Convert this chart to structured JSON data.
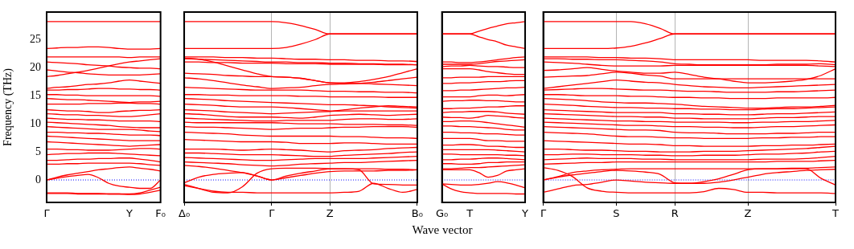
{
  "chart_data": [
    {
      "type": "line",
      "ylabel": "Frequency (THz)",
      "color": "#ff0000",
      "categories": [
        "Γ",
        null,
        null,
        null,
        null,
        null,
        null,
        null,
        "Y",
        null,
        null,
        "F₀"
      ],
      "ylim": [
        -4,
        29.9
      ],
      "yticks": [
        0,
        5,
        10,
        15,
        20,
        25
      ],
      "ref_lines": [
        {
          "axis": "y",
          "value": 0,
          "color": "#0000ff",
          "line_style": "dotted"
        }
      ],
      "series": [
        {
          "values": [
            28.2,
            28.2,
            28.2,
            28.2,
            28.2,
            28.2,
            28.2,
            28.2,
            28.2,
            28.2,
            28.2,
            28.2
          ]
        },
        {
          "values": [
            23.4,
            23.5,
            23.6,
            23.6,
            23.7,
            23.7,
            23.6,
            23.4,
            23.3,
            23.3,
            23.3,
            23.4
          ]
        },
        {
          "values": [
            21.9,
            21.9,
            21.9,
            21.9,
            21.9,
            21.9,
            21.9,
            21.9,
            21.8,
            21.9,
            21.9,
            21.9
          ]
        },
        {
          "values": [
            21.0,
            20.9,
            20.8,
            20.7,
            20.5,
            20.4,
            20.3,
            20.1,
            20.0,
            19.9,
            19.9,
            19.8
          ]
        },
        {
          "values": [
            18.4,
            18.6,
            18.9,
            19.2,
            19.5,
            19.9,
            20.3,
            20.7,
            21.0,
            21.2,
            21.4,
            21.6
          ]
        },
        {
          "values": [
            19.6,
            19.4,
            19.2,
            19.1,
            18.9,
            18.8,
            18.7,
            18.7,
            18.7,
            18.7,
            18.8,
            18.9
          ]
        },
        {
          "values": [
            16.3,
            16.5,
            16.6,
            16.8,
            17.0,
            17.1,
            17.3,
            17.6,
            17.8,
            17.6,
            17.4,
            17.2
          ]
        },
        {
          "values": [
            16.0,
            16.0,
            16.1,
            16.1,
            16.2,
            16.3,
            16.3,
            16.2,
            16.2,
            16.1,
            16.1,
            16.0
          ]
        },
        {
          "values": [
            15.2,
            15.2,
            15.1,
            15.1,
            15.0,
            15.0,
            15.0,
            15.0,
            15.0,
            15.0,
            15.0,
            14.9
          ]
        },
        {
          "values": [
            14.5,
            14.4,
            14.3,
            14.3,
            14.2,
            14.1,
            14.0,
            13.9,
            13.8,
            13.9,
            13.9,
            14.0
          ]
        },
        {
          "values": [
            13.5,
            13.5,
            13.5,
            13.5,
            13.6,
            13.6,
            13.6,
            13.7,
            13.7,
            13.6,
            13.6,
            13.5
          ]
        },
        {
          "values": [
            12.5,
            12.4,
            12.3,
            12.3,
            12.2,
            12.0,
            12.0,
            12.2,
            12.3,
            12.4,
            12.4,
            12.5
          ]
        },
        {
          "values": [
            11.8,
            11.7,
            11.6,
            11.6,
            11.5,
            11.5,
            11.4,
            11.3,
            11.3,
            11.4,
            11.6,
            11.8
          ]
        },
        {
          "values": [
            11.0,
            10.9,
            10.8,
            10.8,
            10.7,
            10.7,
            10.6,
            10.5,
            10.5,
            10.5,
            10.5,
            10.4
          ]
        },
        {
          "values": [
            10.3,
            10.2,
            10.1,
            10.0,
            9.9,
            9.8,
            9.7,
            9.5,
            9.4,
            9.3,
            9.3,
            9.3
          ]
        },
        {
          "values": [
            9.5,
            9.4,
            9.3,
            9.2,
            9.1,
            9.0,
            9.0,
            9.0,
            9.0,
            8.9,
            8.7,
            8.6
          ]
        },
        {
          "values": [
            8.5,
            8.5,
            8.4,
            8.4,
            8.3,
            8.3,
            8.2,
            8.1,
            8.0,
            8.0,
            8.0,
            7.9
          ]
        },
        {
          "values": [
            7.8,
            7.7,
            7.6,
            7.5,
            7.4,
            7.3,
            7.2,
            7.1,
            7.0,
            7.0,
            7.0,
            7.0
          ]
        },
        {
          "values": [
            6.8,
            6.7,
            6.6,
            6.5,
            6.4,
            6.3,
            6.2,
            6.1,
            6.0,
            6.1,
            6.2,
            6.3
          ]
        },
        {
          "values": [
            5.5,
            5.5,
            5.4,
            5.4,
            5.3,
            5.3,
            5.3,
            5.4,
            5.5,
            5.6,
            5.6,
            5.5
          ]
        },
        {
          "values": [
            4.5,
            4.6,
            4.7,
            4.7,
            4.8,
            4.8,
            4.8,
            4.7,
            4.6,
            4.5,
            4.4,
            4.3
          ]
        },
        {
          "values": [
            3.5,
            3.5,
            3.6,
            3.7,
            3.7,
            3.8,
            3.8,
            3.9,
            3.9,
            3.7,
            3.5,
            3.2
          ]
        },
        {
          "values": [
            2.8,
            2.8,
            2.9,
            2.9,
            3.0,
            3.0,
            3.0,
            3.0,
            3.0,
            2.9,
            2.7,
            2.6
          ]
        },
        {
          "values": [
            0,
            0.5,
            0.9,
            1.2,
            1.5,
            1.8,
            2.0,
            2.2,
            2.3,
            2.1,
            1.9,
            1.6
          ]
        },
        {
          "values": [
            0,
            0.3,
            0.6,
            0.8,
            1.0,
            0.4,
            -0.6,
            -1.1,
            -1.3,
            -1.5,
            -1.5,
            0
          ]
        },
        {
          "values": [
            -2.3,
            -2.3,
            -2.3,
            -2.4,
            -2.4,
            -2.4,
            -2.5,
            -2.5,
            -2.6,
            -2.5,
            -2.2,
            -1.8
          ]
        },
        {
          "values": [
            -2.4,
            -2.4,
            -2.4,
            -2.5,
            -2.5,
            -2.5,
            -2.5,
            -2.5,
            -2.5,
            -2.3,
            -1.8,
            -1.3
          ]
        }
      ]
    },
    {
      "type": "line",
      "color": "#ff0000",
      "grid": "x",
      "tick_labels": "x",
      "categories": [
        "Δ₀",
        null,
        null,
        null,
        null,
        null,
        "Γ",
        null,
        null,
        null,
        "Z",
        null,
        null,
        null,
        null,
        null,
        "B₀"
      ],
      "ylim": [
        -4,
        29.9
      ],
      "yticks": [
        0,
        5,
        10,
        15,
        20,
        25
      ],
      "ref_lines": [
        {
          "axis": "y",
          "value": 0,
          "color": "#0000ff",
          "line_style": "dotted"
        }
      ],
      "series": [
        {
          "values": [
            28.2,
            28.2,
            28.2,
            28.2,
            28.2,
            28.2,
            28.2,
            28.0,
            27.5,
            26.8,
            26,
            26,
            26,
            26,
            26,
            26,
            26
          ]
        },
        {
          "values": [
            23.4,
            23.4,
            23.4,
            23.4,
            23.4,
            23.4,
            23.4,
            23.6,
            24.2,
            25.0,
            26,
            26,
            26,
            26,
            26,
            26,
            26
          ]
        },
        {
          "values": [
            21.9,
            21.9,
            21.9,
            21.8,
            21.8,
            21.7,
            21.7,
            21.6,
            21.5,
            21.5,
            21.4,
            21.4,
            21.3,
            21.3,
            21.2,
            21.2,
            21.1
          ]
        },
        {
          "values": [
            21.7,
            21.5,
            21.0,
            20.3,
            19.6,
            18.9,
            18.4,
            18.3,
            18.1,
            17.7,
            17.3,
            17.3,
            17.5,
            17.9,
            18.4,
            19.1,
            19.8
          ]
        },
        {
          "values": [
            21.6,
            21.5,
            21.4,
            21.3,
            21.2,
            21.1,
            21.0,
            21.0,
            20.9,
            20.9,
            20.8,
            20.8,
            20.7,
            20.7,
            20.6,
            20.6,
            20.5
          ]
        },
        {
          "values": [
            21.0,
            21.0,
            20.9,
            20.9,
            20.8,
            20.8,
            20.8,
            20.7,
            20.7,
            20.7,
            20.6,
            20.6,
            20.6,
            20.6,
            20.5,
            20.5,
            20.5
          ]
        },
        {
          "values": [
            19.0,
            18.9,
            18.8,
            18.6,
            18.5,
            18.4,
            18.4,
            18.3,
            18.1,
            17.7,
            17.3,
            17.2,
            17.2,
            17.1,
            17.0,
            16.9,
            16.8
          ]
        },
        {
          "values": [
            18.2,
            18.0,
            17.7,
            17.3,
            16.9,
            16.6,
            16.3,
            16.4,
            16.5,
            16.8,
            17.0,
            17.1,
            17.2,
            17.4,
            17.7,
            18.0,
            18.3
          ]
        },
        {
          "values": [
            16.5,
            16.4,
            16.3,
            16.2,
            16.1,
            16.0,
            16.0,
            16.0,
            16.0,
            15.9,
            15.8,
            15.8,
            15.7,
            15.7,
            15.6,
            15.6,
            15.5
          ]
        },
        {
          "values": [
            15.2,
            15.2,
            15.1,
            15.1,
            15.0,
            15.0,
            15.0,
            15.0,
            14.9,
            14.9,
            14.8,
            14.8,
            14.8,
            14.8,
            14.7,
            14.7,
            14.7
          ]
        },
        {
          "values": [
            14.5,
            14.4,
            14.3,
            14.1,
            14.0,
            13.9,
            13.8,
            13.7,
            13.6,
            13.5,
            13.4,
            13.4,
            13.3,
            13.2,
            13.0,
            12.9,
            12.8
          ]
        },
        {
          "values": [
            13.5,
            13.4,
            13.3,
            13.1,
            13.0,
            13.0,
            13.0,
            12.9,
            12.7,
            12.5,
            12.3,
            12.5,
            12.8,
            13.0,
            13.2,
            13.1,
            13.0
          ]
        },
        {
          "values": [
            12.5,
            12.4,
            12.3,
            12.1,
            12.0,
            11.9,
            11.8,
            11.9,
            12.0,
            12.1,
            12.2,
            12.3,
            12.3,
            12.3,
            12.3,
            12.3,
            12.3
          ]
        },
        {
          "values": [
            11.8,
            11.7,
            11.5,
            11.3,
            11.2,
            11.2,
            11.2,
            11.1,
            11.0,
            11.2,
            11.5,
            11.6,
            11.7,
            11.6,
            11.5,
            11.6,
            11.7
          ]
        },
        {
          "values": [
            11.0,
            10.9,
            10.8,
            10.7,
            10.6,
            10.5,
            10.5,
            10.6,
            10.6,
            10.6,
            10.6,
            10.8,
            10.9,
            10.9,
            10.8,
            10.8,
            10.9
          ]
        },
        {
          "values": [
            10.3,
            10.2,
            10.2,
            10.2,
            10.2,
            10.2,
            10.2,
            10.1,
            10.0,
            10.0,
            10.0,
            9.9,
            9.9,
            9.9,
            9.8,
            9.8,
            9.7
          ]
        },
        {
          "values": [
            9.5,
            9.4,
            9.4,
            9.3,
            9.2,
            9.1,
            9.0,
            9.1,
            9.2,
            9.2,
            9.3,
            9.4,
            9.4,
            9.5,
            9.5,
            9.5,
            9.4
          ]
        },
        {
          "values": [
            8.5,
            8.4,
            8.3,
            8.2,
            8.0,
            7.9,
            7.8,
            7.8,
            7.8,
            7.8,
            7.8,
            7.7,
            7.7,
            7.6,
            7.5,
            7.5,
            7.4
          ]
        },
        {
          "values": [
            7.2,
            7.1,
            7.0,
            6.9,
            6.8,
            6.8,
            6.8,
            6.7,
            6.5,
            6.5,
            6.5,
            6.6,
            6.6,
            6.5,
            6.4,
            6.4,
            6.4
          ]
        },
        {
          "values": [
            5.5,
            5.5,
            5.5,
            5.4,
            5.3,
            5.4,
            5.5,
            5.4,
            5.3,
            5.1,
            5.0,
            5.2,
            5.3,
            5.4,
            5.6,
            5.7,
            5.8
          ]
        },
        {
          "values": [
            4.8,
            4.8,
            4.7,
            4.6,
            4.5,
            4.5,
            4.5,
            4.4,
            4.3,
            4.2,
            4.2,
            4.4,
            4.5,
            4.6,
            4.7,
            4.9,
            5.0
          ]
        },
        {
          "values": [
            4.0,
            3.9,
            3.8,
            3.7,
            3.6,
            3.5,
            3.5,
            3.6,
            3.7,
            3.8,
            3.8,
            3.8,
            3.8,
            3.9,
            4.0,
            4.1,
            4.2
          ]
        },
        {
          "values": [
            3.2,
            3.1,
            3.0,
            2.9,
            2.7,
            2.6,
            2.5,
            2.6,
            2.8,
            2.9,
            3.0,
            3.1,
            3.1,
            3.2,
            3.3,
            3.4,
            3.5
          ]
        },
        {
          "values": [
            2.6,
            2.4,
            2.1,
            1.7,
            1.3,
            0.7,
            0,
            0.7,
            1.2,
            1.6,
            2.0,
            2.0,
            1.8,
            -0.7,
            -0.8,
            -0.9,
            -0.9
          ]
        },
        {
          "values": [
            -0.5,
            0.5,
            1.0,
            1.2,
            1.3,
            0.7,
            0,
            0.4,
            0.8,
            1.2,
            1.5,
            1.6,
            1.6,
            1.6,
            1.7,
            1.7,
            1.8
          ]
        },
        {
          "values": [
            -1.0,
            -1.5,
            -2.0,
            -2.2,
            -2.2,
            -2.3,
            -2.3,
            -2.3,
            -2.3,
            -2.3,
            -2.3,
            -2.2,
            -2.0,
            -0.6,
            -1.5,
            -2.2,
            -1.7
          ]
        },
        {
          "values": [
            -0.8,
            -1.5,
            -2.2,
            -2.3,
            -1.2,
            1.2,
            2.0,
            2.1,
            2.1,
            2.1,
            2.0,
            2.0,
            2.0,
            2.0,
            1.9,
            1.9,
            1.8
          ]
        }
      ]
    },
    {
      "type": "line",
      "color": "#ff0000",
      "tick_labels": "x",
      "xlabel": "Wave vector",
      "categories": [
        "G₀",
        null,
        null,
        "T",
        null,
        null,
        null,
        null,
        null,
        "Y"
      ],
      "ylim": [
        -4,
        29.9
      ],
      "yticks": [
        0,
        5,
        10,
        15,
        20,
        25
      ],
      "ref_lines": [
        {
          "axis": "y",
          "value": 0,
          "color": "#0000ff",
          "line_style": "dotted"
        }
      ],
      "series": [
        {
          "values": [
            26,
            26,
            26,
            26,
            26.5,
            27.0,
            27.4,
            27.8,
            28.0,
            28.2
          ]
        },
        {
          "values": [
            26,
            26,
            26,
            26,
            25.5,
            25.0,
            24.6,
            24.0,
            23.7,
            23.4
          ]
        },
        {
          "values": [
            21.0,
            21.0,
            20.9,
            20.9,
            21.0,
            21.2,
            21.4,
            21.6,
            21.8,
            21.9
          ]
        },
        {
          "values": [
            20.6,
            20.6,
            20.6,
            20.6,
            20.7,
            20.9,
            21.1,
            21.2,
            21.3,
            21.4
          ]
        },
        {
          "values": [
            20.2,
            20.3,
            20.3,
            20.4,
            20.3,
            20.2,
            20.2,
            20.1,
            20.0,
            20.0
          ]
        },
        {
          "values": [
            19.8,
            19.8,
            19.8,
            19.8,
            19.6,
            19.3,
            19.1,
            18.9,
            18.8,
            18.8
          ]
        },
        {
          "values": [
            18.2,
            18.2,
            18.3,
            18.3,
            18.3,
            18.4,
            18.4,
            18.4,
            18.4,
            18.4
          ]
        },
        {
          "values": [
            17.2,
            17.2,
            17.3,
            17.3,
            17.4,
            17.5,
            17.5,
            17.6,
            17.7,
            17.7
          ]
        },
        {
          "values": [
            15.9,
            15.9,
            16.0,
            16.0,
            16.1,
            16.2,
            16.3,
            16.4,
            16.4,
            16.5
          ]
        },
        {
          "values": [
            14.8,
            14.8,
            14.8,
            14.8,
            15.0,
            15.1,
            15.1,
            15.0,
            15.1,
            15.2
          ]
        },
        {
          "values": [
            14.0,
            14.1,
            14.1,
            14.2,
            14.2,
            14.1,
            14.1,
            14.0,
            13.9,
            13.9
          ]
        },
        {
          "values": [
            12.7,
            12.7,
            12.8,
            12.8,
            12.9,
            13.0,
            13.0,
            13.1,
            13.2,
            13.2
          ]
        },
        {
          "values": [
            12.0,
            12.1,
            12.1,
            12.2,
            12.2,
            12.2,
            12.1,
            11.9,
            11.8,
            11.7
          ]
        },
        {
          "values": [
            11.2,
            11.1,
            11.1,
            11.0,
            11.2,
            11.5,
            11.4,
            11.3,
            11.1,
            11.0
          ]
        },
        {
          "values": [
            10.4,
            10.4,
            10.5,
            10.5,
            10.4,
            10.2,
            10.0,
            9.8,
            9.6,
            9.4
          ]
        },
        {
          "values": [
            9.6,
            9.6,
            9.5,
            9.5,
            9.4,
            9.3,
            9.2,
            9.0,
            8.9,
            8.9
          ]
        },
        {
          "values": [
            8.5,
            8.5,
            8.4,
            8.4,
            8.3,
            8.2,
            8.2,
            8.1,
            8.0,
            8.0
          ]
        },
        {
          "values": [
            7.4,
            7.4,
            7.4,
            7.4,
            7.2,
            7.0,
            7.0,
            6.9,
            6.9,
            6.9
          ]
        },
        {
          "values": [
            6.2,
            6.2,
            6.3,
            6.3,
            6.2,
            6.0,
            6.0,
            5.9,
            5.8,
            5.8
          ]
        },
        {
          "values": [
            5.4,
            5.4,
            5.4,
            5.4,
            5.4,
            5.4,
            5.3,
            5.2,
            5.1,
            5.0
          ]
        },
        {
          "values": [
            4.6,
            4.6,
            4.5,
            4.5,
            4.5,
            4.5,
            4.5,
            4.4,
            4.4,
            4.3
          ]
        },
        {
          "values": [
            3.6,
            3.6,
            3.7,
            3.7,
            3.8,
            3.9,
            3.9,
            3.8,
            3.7,
            3.6
          ]
        },
        {
          "values": [
            2.9,
            2.9,
            2.8,
            2.8,
            2.9,
            3.1,
            3.1,
            3.2,
            3.2,
            3.2
          ]
        },
        {
          "values": [
            2.0,
            2.0,
            2.1,
            2.2,
            2.2,
            2.3,
            2.4,
            2.5,
            2.6,
            2.7
          ]
        },
        {
          "values": [
            1.8,
            1.8,
            1.8,
            1.8,
            1.3,
            0.5,
            0.8,
            1.6,
            1.8,
            2.0
          ]
        },
        {
          "values": [
            -0.7,
            -0.8,
            -0.9,
            -0.9,
            -0.8,
            -0.6,
            -0.3,
            -0.5,
            -0.9,
            -1.4
          ]
        },
        {
          "values": [
            -0.7,
            -1.6,
            -2.1,
            -2.3,
            -2.4,
            -2.4,
            -2.4,
            -2.4,
            -2.5,
            -2.5
          ]
        }
      ]
    },
    {
      "type": "line",
      "color": "#ff0000",
      "grid": "x",
      "tick_labels": "x",
      "categories": [
        "Γ",
        null,
        null,
        null,
        null,
        "S",
        null,
        null,
        null,
        "R",
        null,
        null,
        null,
        null,
        "Z",
        null,
        null,
        null,
        null,
        null,
        "T"
      ],
      "ylim": [
        -4,
        29.9
      ],
      "yticks": [
        0,
        5,
        10,
        15,
        20,
        25
      ],
      "ref_lines": [
        {
          "axis": "y",
          "value": 0,
          "color": "#0000ff",
          "line_style": "dotted"
        }
      ],
      "series": [
        {
          "values": [
            28.2,
            28.2,
            28.2,
            28.2,
            28.2,
            28.2,
            28.2,
            27.8,
            27.0,
            26,
            26,
            26,
            26,
            26,
            26,
            26,
            26,
            26,
            26,
            26,
            26
          ]
        },
        {
          "values": [
            23.4,
            23.4,
            23.4,
            23.4,
            23.4,
            23.5,
            23.8,
            24.4,
            25.2,
            26,
            26,
            26,
            26,
            26,
            26,
            26,
            26,
            26,
            26,
            26,
            26
          ]
        },
        {
          "values": [
            21.9,
            21.9,
            21.9,
            21.9,
            21.8,
            21.8,
            21.7,
            21.7,
            21.6,
            21.4,
            21.4,
            21.4,
            21.4,
            21.4,
            21.4,
            21.3,
            21.3,
            21.3,
            21.3,
            21.2,
            21.0
          ]
        },
        {
          "values": [
            21.6,
            21.6,
            21.5,
            21.5,
            21.4,
            21.4,
            21.3,
            21.2,
            21.0,
            20.7,
            20.6,
            20.5,
            20.5,
            20.5,
            20.5,
            20.5,
            20.6,
            20.6,
            20.6,
            20.7,
            20.5
          ]
        },
        {
          "values": [
            21.0,
            20.9,
            20.8,
            20.6,
            20.4,
            20.3,
            20.3,
            20.3,
            20.3,
            20.4,
            20.4,
            20.4,
            20.4,
            20.4,
            20.4,
            20.4,
            20.4,
            20.4,
            20.4,
            20.3,
            20.2
          ]
        },
        {
          "values": [
            19.5,
            19.6,
            19.8,
            20.0,
            19.7,
            19.4,
            19.2,
            19.0,
            19.0,
            19.2,
            18.8,
            18.3,
            18.0,
            17.6,
            17.3,
            17.3,
            17.4,
            17.6,
            17.9,
            18.6,
            19.8
          ]
        },
        {
          "values": [
            18.3,
            18.4,
            18.5,
            18.6,
            18.9,
            19.2,
            19.0,
            18.7,
            18.5,
            18.0,
            18.0,
            18.0,
            18.0,
            18.0,
            18.0,
            18.0,
            18.0,
            18.0,
            18.0,
            18.0,
            18.0
          ]
        },
        {
          "values": [
            16.3,
            16.6,
            16.9,
            17.2,
            17.5,
            17.8,
            17.6,
            17.4,
            17.3,
            17.0,
            16.8,
            16.6,
            16.5,
            16.4,
            16.4,
            16.5,
            16.6,
            16.7,
            16.8,
            16.9,
            17.0
          ]
        },
        {
          "values": [
            16.0,
            16.1,
            16.2,
            16.3,
            16.3,
            16.2,
            16.1,
            16.0,
            16.0,
            15.9,
            15.8,
            15.8,
            15.7,
            15.6,
            15.6,
            15.6,
            15.7,
            15.7,
            15.8,
            15.9,
            16.0
          ]
        },
        {
          "values": [
            15.2,
            15.2,
            15.1,
            15.0,
            15.0,
            15.0,
            14.9,
            14.9,
            14.8,
            14.7,
            14.7,
            14.6,
            14.6,
            14.5,
            14.5,
            14.5,
            14.6,
            14.6,
            14.6,
            14.6,
            14.7
          ]
        },
        {
          "values": [
            14.5,
            14.4,
            14.3,
            14.1,
            13.9,
            13.8,
            13.7,
            13.7,
            13.6,
            13.5,
            13.3,
            13.1,
            13.0,
            12.9,
            12.8,
            12.8,
            12.9,
            13.0,
            13.0,
            13.1,
            13.3
          ]
        },
        {
          "values": [
            13.5,
            13.4,
            13.3,
            13.1,
            13.0,
            12.9,
            12.9,
            12.8,
            12.8,
            12.7,
            12.7,
            12.6,
            12.6,
            12.5,
            12.5,
            12.6,
            12.7,
            12.7,
            12.8,
            12.9,
            13.0
          ]
        },
        {
          "values": [
            12.5,
            12.4,
            12.3,
            12.2,
            12.1,
            12.0,
            12.0,
            12.0,
            12.0,
            11.8,
            11.8,
            11.7,
            11.7,
            11.6,
            11.6,
            11.7,
            11.8,
            11.8,
            11.9,
            12.0,
            12.1
          ]
        },
        {
          "values": [
            11.8,
            11.7,
            11.6,
            11.5,
            11.4,
            11.3,
            11.3,
            11.2,
            11.2,
            11.0,
            11.0,
            10.9,
            10.9,
            10.9,
            10.9,
            11.0,
            11.1,
            11.1,
            11.2,
            11.3,
            11.3
          ]
        },
        {
          "values": [
            11.0,
            10.9,
            10.8,
            10.7,
            10.6,
            10.5,
            10.5,
            10.4,
            10.4,
            10.3,
            10.3,
            10.3,
            10.3,
            10.2,
            10.2,
            10.3,
            10.3,
            10.4,
            10.4,
            10.5,
            10.6
          ]
        },
        {
          "values": [
            10.3,
            10.2,
            10.1,
            10.0,
            9.9,
            9.8,
            9.7,
            9.7,
            9.6,
            9.5,
            9.5,
            9.4,
            9.4,
            9.3,
            9.3,
            9.4,
            9.5,
            9.5,
            9.6,
            9.7,
            9.8
          ]
        },
        {
          "values": [
            9.5,
            9.4,
            9.3,
            9.2,
            9.1,
            9.0,
            8.9,
            8.9,
            8.8,
            8.5,
            8.4,
            8.4,
            8.3,
            8.2,
            8.2,
            8.2,
            8.3,
            8.3,
            8.4,
            8.5,
            8.5
          ]
        },
        {
          "values": [
            8.5,
            8.4,
            8.3,
            8.2,
            8.0,
            7.8,
            7.7,
            7.7,
            7.6,
            7.5,
            7.5,
            7.4,
            7.4,
            7.4,
            7.4,
            7.5,
            7.5,
            7.6,
            7.6,
            7.7,
            7.7
          ]
        },
        {
          "values": [
            7.0,
            6.9,
            6.8,
            6.7,
            6.6,
            6.5,
            6.4,
            6.4,
            6.3,
            6.1,
            6.1,
            6.0,
            6.0,
            6.0,
            6.0,
            6.1,
            6.1,
            6.2,
            6.2,
            6.3,
            6.4
          ]
        },
        {
          "values": [
            5.5,
            5.5,
            5.4,
            5.3,
            5.3,
            5.2,
            5.1,
            5.1,
            5.0,
            5.0,
            5.0,
            5.1,
            5.1,
            5.1,
            5.2,
            5.3,
            5.4,
            5.5,
            5.6,
            5.8,
            6.0
          ]
        },
        {
          "values": [
            4.5,
            4.5,
            4.6,
            4.6,
            4.5,
            4.5,
            4.5,
            4.4,
            4.4,
            4.3,
            4.3,
            4.4,
            4.4,
            4.4,
            4.5,
            4.6,
            4.6,
            4.7,
            4.8,
            5.0,
            5.1
          ]
        },
        {
          "values": [
            3.6,
            3.7,
            3.8,
            3.9,
            3.8,
            3.8,
            3.8,
            3.7,
            3.7,
            3.6,
            3.6,
            3.6,
            3.6,
            3.6,
            3.6,
            3.7,
            3.7,
            3.7,
            3.8,
            4.0,
            4.2
          ]
        },
        {
          "values": [
            2.8,
            2.9,
            3.0,
            3.1,
            3.1,
            3.2,
            3.2,
            3.2,
            3.2,
            3.2,
            3.2,
            3.2,
            3.2,
            3.2,
            3.2,
            3.2,
            3.3,
            3.3,
            3.3,
            3.4,
            3.5
          ]
        },
        {
          "values": [
            0,
            0.6,
            1.3,
            1.6,
            1.8,
            1.9,
            2.0,
            2.0,
            2.0,
            2.0,
            2.0,
            2.0,
            2.0,
            2.0,
            2.0,
            2.0,
            2.0,
            2.1,
            2.1,
            2.2,
            2.3
          ]
        },
        {
          "values": [
            2.2,
            1.7,
            0.6,
            -1.4,
            -2.0,
            -2.2,
            -2.3,
            -2.3,
            -2.3,
            -2.3,
            -2.3,
            -2.1,
            -1.5,
            -1.7,
            -2.2,
            -2.2,
            -2.3,
            -2.3,
            -2.3,
            -2.3,
            -2.4
          ]
        },
        {
          "values": [
            -2.2,
            -1.6,
            -1.0,
            -0.8,
            -0.4,
            0,
            -0.2,
            -0.4,
            -0.5,
            -0.6,
            -0.6,
            -0.3,
            0.2,
            1.0,
            1.8,
            2.0,
            2.0,
            2.0,
            2.0,
            0.3,
            -0.9
          ]
        },
        {
          "values": [
            0,
            0.5,
            0.9,
            1.2,
            1.5,
            1.7,
            1.6,
            1.4,
            1.0,
            -0.5,
            -0.6,
            -0.6,
            -0.4,
            0.0,
            0.5,
            1.0,
            1.3,
            1.5,
            1.7,
            1.8,
            1.9
          ]
        }
      ]
    }
  ]
}
